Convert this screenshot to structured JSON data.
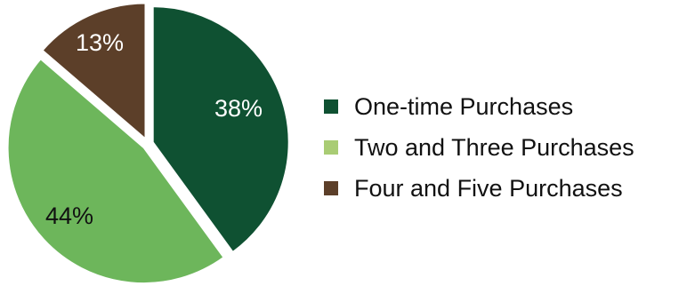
{
  "chart_data": {
    "type": "pie",
    "categories": [
      "One-time Purchases",
      "Two and Three Purchases",
      "Four and Five Purchases"
    ],
    "values": [
      38,
      44,
      13
    ],
    "value_labels": [
      "38%",
      "44%",
      "13%"
    ],
    "colors": [
      "#0f5132",
      "#6db65b",
      "#5c3f29"
    ],
    "label_colors": [
      "#ffffff",
      "#111111",
      "#ffffff"
    ],
    "legend_colors": [
      "#0f5132",
      "#a9cc74",
      "#5c3f29"
    ],
    "legend": {
      "placement": "right",
      "entries": [
        "One-time Purchases",
        "Two and Three Purchases",
        "Four and Five Purchases"
      ]
    },
    "start_angle_deg": 0,
    "direction": "clockwise",
    "exploded": true
  }
}
